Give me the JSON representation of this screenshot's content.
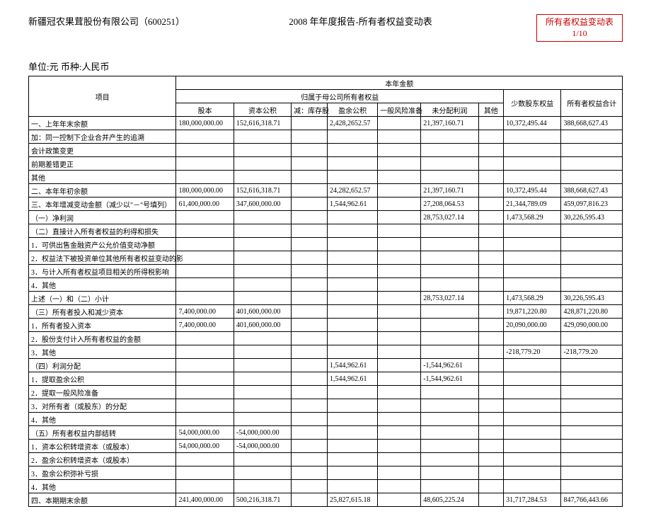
{
  "header": {
    "company": "新疆冠农果茸股份有限公司（600251）",
    "title": "2008 年年度报告-所有者权益变动表",
    "stamp_line1": "所有者权益变动表",
    "stamp_line2": "1/10"
  },
  "unit_line": "单位:元 币种:人民币",
  "table": {
    "top_header": "本年金额",
    "sub_header": "归属于母公司所有者权益",
    "columns": {
      "item": "项目",
      "c1": "股本",
      "c2": "资本公积",
      "c3": "减：库存股",
      "c4": "盈余公积",
      "c5": "一般风险准备",
      "c6": "未分配利润",
      "c7": "其他",
      "c8": "少数股东权益",
      "c9": "所有者权益合计"
    },
    "rows": [
      {
        "item": "一、上年年末余额",
        "c1": "180,000,000.00",
        "c2": "152,616,318.71",
        "c3": "",
        "c4": "2,428,2652.57",
        "c5": "",
        "c6": "21,397,160.71",
        "c7": "",
        "c8": "10,372,495.44",
        "c9": "388,668,627.43"
      },
      {
        "item": "加：同一控制下企业合并产生的追溯",
        "c1": "",
        "c2": "",
        "c3": "",
        "c4": "",
        "c5": "",
        "c6": "",
        "c7": "",
        "c8": "",
        "c9": ""
      },
      {
        "item": "会计政策变更",
        "c1": "",
        "c2": "",
        "c3": "",
        "c4": "",
        "c5": "",
        "c6": "",
        "c7": "",
        "c8": "",
        "c9": ""
      },
      {
        "item": "前期差错更正",
        "c1": "",
        "c2": "",
        "c3": "",
        "c4": "",
        "c5": "",
        "c6": "",
        "c7": "",
        "c8": "",
        "c9": ""
      },
      {
        "item": "其他",
        "c1": "",
        "c2": "",
        "c3": "",
        "c4": "",
        "c5": "",
        "c6": "",
        "c7": "",
        "c8": "",
        "c9": ""
      },
      {
        "item": "二、本年年初余额",
        "c1": "180,000,000.00",
        "c2": "152,616,318.71",
        "c3": "",
        "c4": "24,282,652.57",
        "c5": "",
        "c6": "21,397,160.71",
        "c7": "",
        "c8": "10,372,495.44",
        "c9": "388,668,627.43"
      },
      {
        "item": "三、本年增减变动金额（减少以\"－\"号填列）",
        "c1": "61,400,000.00",
        "c2": "347,600,000.00",
        "c3": "",
        "c4": "1,544,962.61",
        "c5": "",
        "c6": "27,208,064.53",
        "c7": "",
        "c8": "21,344,789.09",
        "c9": "459,097,816.23"
      },
      {
        "item": "（一）净利润",
        "c1": "",
        "c2": "",
        "c3": "",
        "c4": "",
        "c5": "",
        "c6": "28,753,027.14",
        "c7": "",
        "c8": "1,473,568.29",
        "c9": "30,226,595.43"
      },
      {
        "item": "（二）直接计入所有者权益的利得和损失",
        "c1": "",
        "c2": "",
        "c3": "",
        "c4": "",
        "c5": "",
        "c6": "",
        "c7": "",
        "c8": "",
        "c9": ""
      },
      {
        "item": "1．可供出售金融资产公允价值变动净额",
        "c1": "",
        "c2": "",
        "c3": "",
        "c4": "",
        "c5": "",
        "c6": "",
        "c7": "",
        "c8": "",
        "c9": ""
      },
      {
        "item": "2．权益法下被投资单位其他所有者权益变动的影",
        "c1": "",
        "c2": "",
        "c3": "",
        "c4": "",
        "c5": "",
        "c6": "",
        "c7": "",
        "c8": "",
        "c9": ""
      },
      {
        "item": "3．与计入所有者权益项目相关的所得税影响",
        "c1": "",
        "c2": "",
        "c3": "",
        "c4": "",
        "c5": "",
        "c6": "",
        "c7": "",
        "c8": "",
        "c9": ""
      },
      {
        "item": "4．其他",
        "c1": "",
        "c2": "",
        "c3": "",
        "c4": "",
        "c5": "",
        "c6": "",
        "c7": "",
        "c8": "",
        "c9": ""
      },
      {
        "item": "上述（一）和（二）小计",
        "c1": "",
        "c2": "",
        "c3": "",
        "c4": "",
        "c5": "",
        "c6": "28,753,027.14",
        "c7": "",
        "c8": "1,473,568.29",
        "c9": "30,226,595.43"
      },
      {
        "item": "（三）所有者投入和减少资本",
        "c1": "7,400,000.00",
        "c2": "401,600,000.00",
        "c3": "",
        "c4": "",
        "c5": "",
        "c6": "",
        "c7": "",
        "c8": "19,871,220.80",
        "c9": "428,871,220.80"
      },
      {
        "item": "1．所有者投入资本",
        "c1": "7,400,000.00",
        "c2": "401,600,000.00",
        "c3": "",
        "c4": "",
        "c5": "",
        "c6": "",
        "c7": "",
        "c8": "20,090,000.00",
        "c9": "429,090,000.00"
      },
      {
        "item": "2．股份支付计入所有者权益的金额",
        "c1": "",
        "c2": "",
        "c3": "",
        "c4": "",
        "c5": "",
        "c6": "",
        "c7": "",
        "c8": "",
        "c9": ""
      },
      {
        "item": "3．其他",
        "c1": "",
        "c2": "",
        "c3": "",
        "c4": "",
        "c5": "",
        "c6": "",
        "c7": "",
        "c8": "-218,779.20",
        "c9": "-218,779.20"
      },
      {
        "item": "（四）利润分配",
        "c1": "",
        "c2": "",
        "c3": "",
        "c4": "1,544,962.61",
        "c5": "",
        "c6": "-1,544,962.61",
        "c7": "",
        "c8": "",
        "c9": ""
      },
      {
        "item": "1．提取盈余公积",
        "c1": "",
        "c2": "",
        "c3": "",
        "c4": "1,544,962.61",
        "c5": "",
        "c6": "-1,544,962.61",
        "c7": "",
        "c8": "",
        "c9": ""
      },
      {
        "item": "2．提取一般风险准备",
        "c1": "",
        "c2": "",
        "c3": "",
        "c4": "",
        "c5": "",
        "c6": "",
        "c7": "",
        "c8": "",
        "c9": ""
      },
      {
        "item": "3．对所有者（或股东）的分配",
        "c1": "",
        "c2": "",
        "c3": "",
        "c4": "",
        "c5": "",
        "c6": "",
        "c7": "",
        "c8": "",
        "c9": ""
      },
      {
        "item": "4．其他",
        "c1": "",
        "c2": "",
        "c3": "",
        "c4": "",
        "c5": "",
        "c6": "",
        "c7": "",
        "c8": "",
        "c9": ""
      },
      {
        "item": "（五）所有者权益内部结转",
        "c1": "54,000,000.00",
        "c2": "-54,000,000.00",
        "c3": "",
        "c4": "",
        "c5": "",
        "c6": "",
        "c7": "",
        "c8": "",
        "c9": ""
      },
      {
        "item": "1．资本公积转增资本（或股本）",
        "c1": "54,000,000.00",
        "c2": "-54,000,000.00",
        "c3": "",
        "c4": "",
        "c5": "",
        "c6": "",
        "c7": "",
        "c8": "",
        "c9": ""
      },
      {
        "item": "2．盈余公积转增资本（或股本）",
        "c1": "",
        "c2": "",
        "c3": "",
        "c4": "",
        "c5": "",
        "c6": "",
        "c7": "",
        "c8": "",
        "c9": ""
      },
      {
        "item": "3．盈余公积弥补亏损",
        "c1": "",
        "c2": "",
        "c3": "",
        "c4": "",
        "c5": "",
        "c6": "",
        "c7": "",
        "c8": "",
        "c9": ""
      },
      {
        "item": "4．其他",
        "c1": "",
        "c2": "",
        "c3": "",
        "c4": "",
        "c5": "",
        "c6": "",
        "c7": "",
        "c8": "",
        "c9": ""
      },
      {
        "item": "四、本期期末余额",
        "c1": "241,400,000.00",
        "c2": "500,216,318.71",
        "c3": "",
        "c4": "25,827,615.18",
        "c5": "",
        "c6": "48,605,225.24",
        "c7": "",
        "c8": "31,717,284.53",
        "c9": "847,766,443.66"
      }
    ]
  }
}
